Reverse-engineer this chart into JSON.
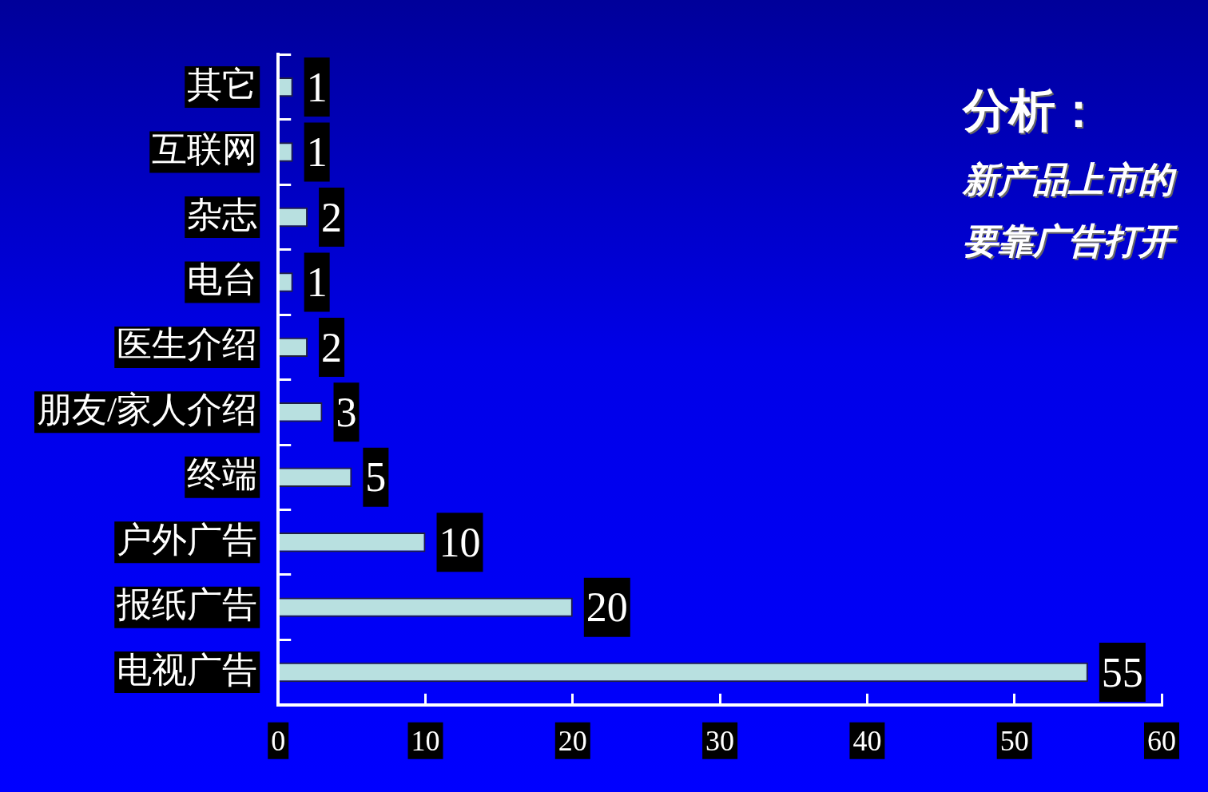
{
  "chart_data": {
    "type": "bar",
    "orientation": "horizontal",
    "categories": [
      "其它",
      "互联网",
      "杂志",
      "电台",
      "医生介绍",
      "朋友/家人介绍",
      "终端",
      "户外广告",
      "报纸广告",
      "电视广告"
    ],
    "values": [
      1,
      1,
      2,
      1,
      2,
      3,
      5,
      10,
      20,
      55
    ],
    "color": "#b8e0e0",
    "xlim": [
      0,
      60
    ],
    "xticks": [
      0,
      10,
      20,
      30,
      40,
      50,
      60
    ],
    "data_labels": true,
    "grid": false,
    "legend": false,
    "annotations": [
      "分析：",
      "新产品上市的",
      "要靠广告打开"
    ]
  }
}
